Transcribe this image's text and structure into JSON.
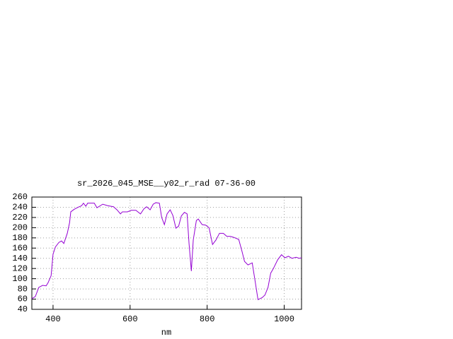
{
  "chart_data": {
    "type": "line",
    "title": "sr_2026_045_MSE__y02_r_rad 07-36-00",
    "x_label": "nm",
    "x": [
      345,
      354,
      363,
      373,
      382,
      387,
      395,
      400,
      406,
      415,
      422,
      428,
      437,
      443,
      446,
      455,
      465,
      474,
      479,
      485,
      490,
      501,
      507,
      514,
      529,
      542,
      557,
      566,
      575,
      580,
      593,
      603,
      615,
      627,
      636,
      643,
      652,
      660,
      667,
      676,
      682,
      689,
      696,
      704,
      711,
      719,
      726,
      733,
      741,
      748,
      753,
      759,
      764,
      772,
      777,
      787,
      796,
      805,
      814,
      823,
      832,
      842,
      851,
      860,
      869,
      882,
      890,
      897,
      906,
      917,
      925,
      932,
      943,
      950,
      958,
      965,
      972,
      983,
      993,
      1002,
      1011,
      1020,
      1031,
      1039,
      1045
    ],
    "series": [
      {
        "color": "#9400d3",
        "values": [
          61,
          65,
          83,
          87,
          86,
          92,
          106,
          148,
          162,
          171,
          174,
          169,
          189,
          210,
          231,
          236,
          240,
          243,
          248,
          242,
          248,
          248,
          248,
          239,
          246,
          243,
          241,
          235,
          227,
          231,
          231,
          234,
          234,
          227,
          237,
          241,
          235,
          246,
          249,
          248,
          220,
          206,
          227,
          235,
          224,
          199,
          203,
          223,
          230,
          227,
          169,
          115,
          176,
          214,
          217,
          206,
          205,
          200,
          167,
          176,
          189,
          189,
          183,
          183,
          181,
          177,
          155,
          134,
          127,
          131,
          93,
          59,
          63,
          68,
          83,
          111,
          120,
          137,
          147,
          141,
          144,
          140,
          142,
          140,
          141
        ]
      }
    ],
    "xlim": [
      345,
      1045
    ],
    "ylim": [
      40,
      260
    ],
    "xticks": [
      400,
      600,
      800,
      1000
    ],
    "yticks": [
      40,
      60,
      80,
      100,
      120,
      140,
      160,
      180,
      200,
      220,
      240,
      260
    ],
    "grid": true
  }
}
